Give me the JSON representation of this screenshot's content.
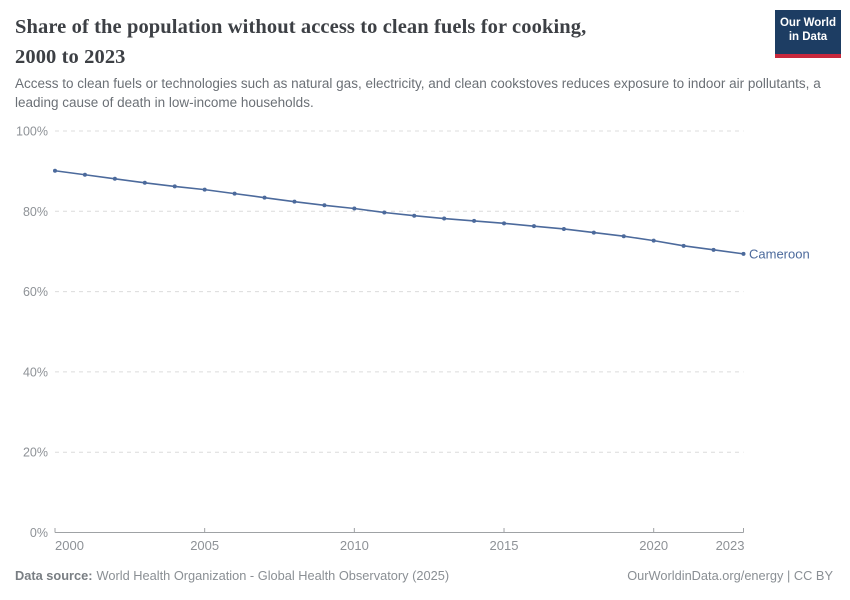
{
  "header": {
    "title": "Share of the population without access to clean fuels for cooking, 2000 to 2023",
    "title_lines": [
      "Share of the population without access to clean fuels for cooking,",
      "2000 to 2023"
    ],
    "subtitle": "Access to clean fuels or technologies such as natural gas, electricity, and clean cookstoves reduces exposure to indoor air pollutants, a leading cause of death in low-income households.",
    "logo": {
      "line1": "Our World",
      "line2": "in Data"
    }
  },
  "chart_data": {
    "type": "line",
    "title": "Share of the population without access to clean fuels for cooking, 2000 to 2023",
    "xlabel": "",
    "ylabel": "",
    "xlim": [
      2000,
      2023
    ],
    "ylim": [
      0,
      100
    ],
    "grid": "dashed-horizontal",
    "legend_position": "end-of-line-label",
    "x_ticks": [
      {
        "value": 2000,
        "label": "2000"
      },
      {
        "value": 2005,
        "label": "2005"
      },
      {
        "value": 2010,
        "label": "2010"
      },
      {
        "value": 2015,
        "label": "2015"
      },
      {
        "value": 2020,
        "label": "2020"
      },
      {
        "value": 2023,
        "label": "2023"
      }
    ],
    "y_ticks": [
      {
        "value": 0,
        "label": "0%"
      },
      {
        "value": 20,
        "label": "20%"
      },
      {
        "value": 40,
        "label": "40%"
      },
      {
        "value": 60,
        "label": "60%"
      },
      {
        "value": 80,
        "label": "80%"
      },
      {
        "value": 100,
        "label": "100%"
      }
    ],
    "series": [
      {
        "name": "Cameroon",
        "color": "#4C6A9C",
        "x": [
          2000,
          2001,
          2002,
          2003,
          2004,
          2005,
          2006,
          2007,
          2008,
          2009,
          2010,
          2011,
          2012,
          2013,
          2014,
          2015,
          2016,
          2017,
          2018,
          2019,
          2020,
          2021,
          2022,
          2023
        ],
        "values": [
          90.1,
          89.1,
          88.1,
          87.1,
          86.2,
          85.4,
          84.4,
          83.4,
          82.4,
          81.5,
          80.7,
          79.7,
          78.9,
          78.2,
          77.6,
          77.0,
          76.3,
          75.6,
          74.7,
          73.8,
          72.7,
          71.4,
          70.4,
          69.4
        ]
      }
    ]
  },
  "footer": {
    "data_source_label": "Data source:",
    "data_source_text": "World Health Organization - Global Health Observatory (2025)",
    "link_text": "OurWorldinData.org/energy | CC BY"
  },
  "colors": {
    "line": "#4C6A9C",
    "gridline": "#dcdcdc",
    "axis": "#9fa2a5",
    "logo_bg": "#1d3d63",
    "logo_red": "#c8283c"
  }
}
